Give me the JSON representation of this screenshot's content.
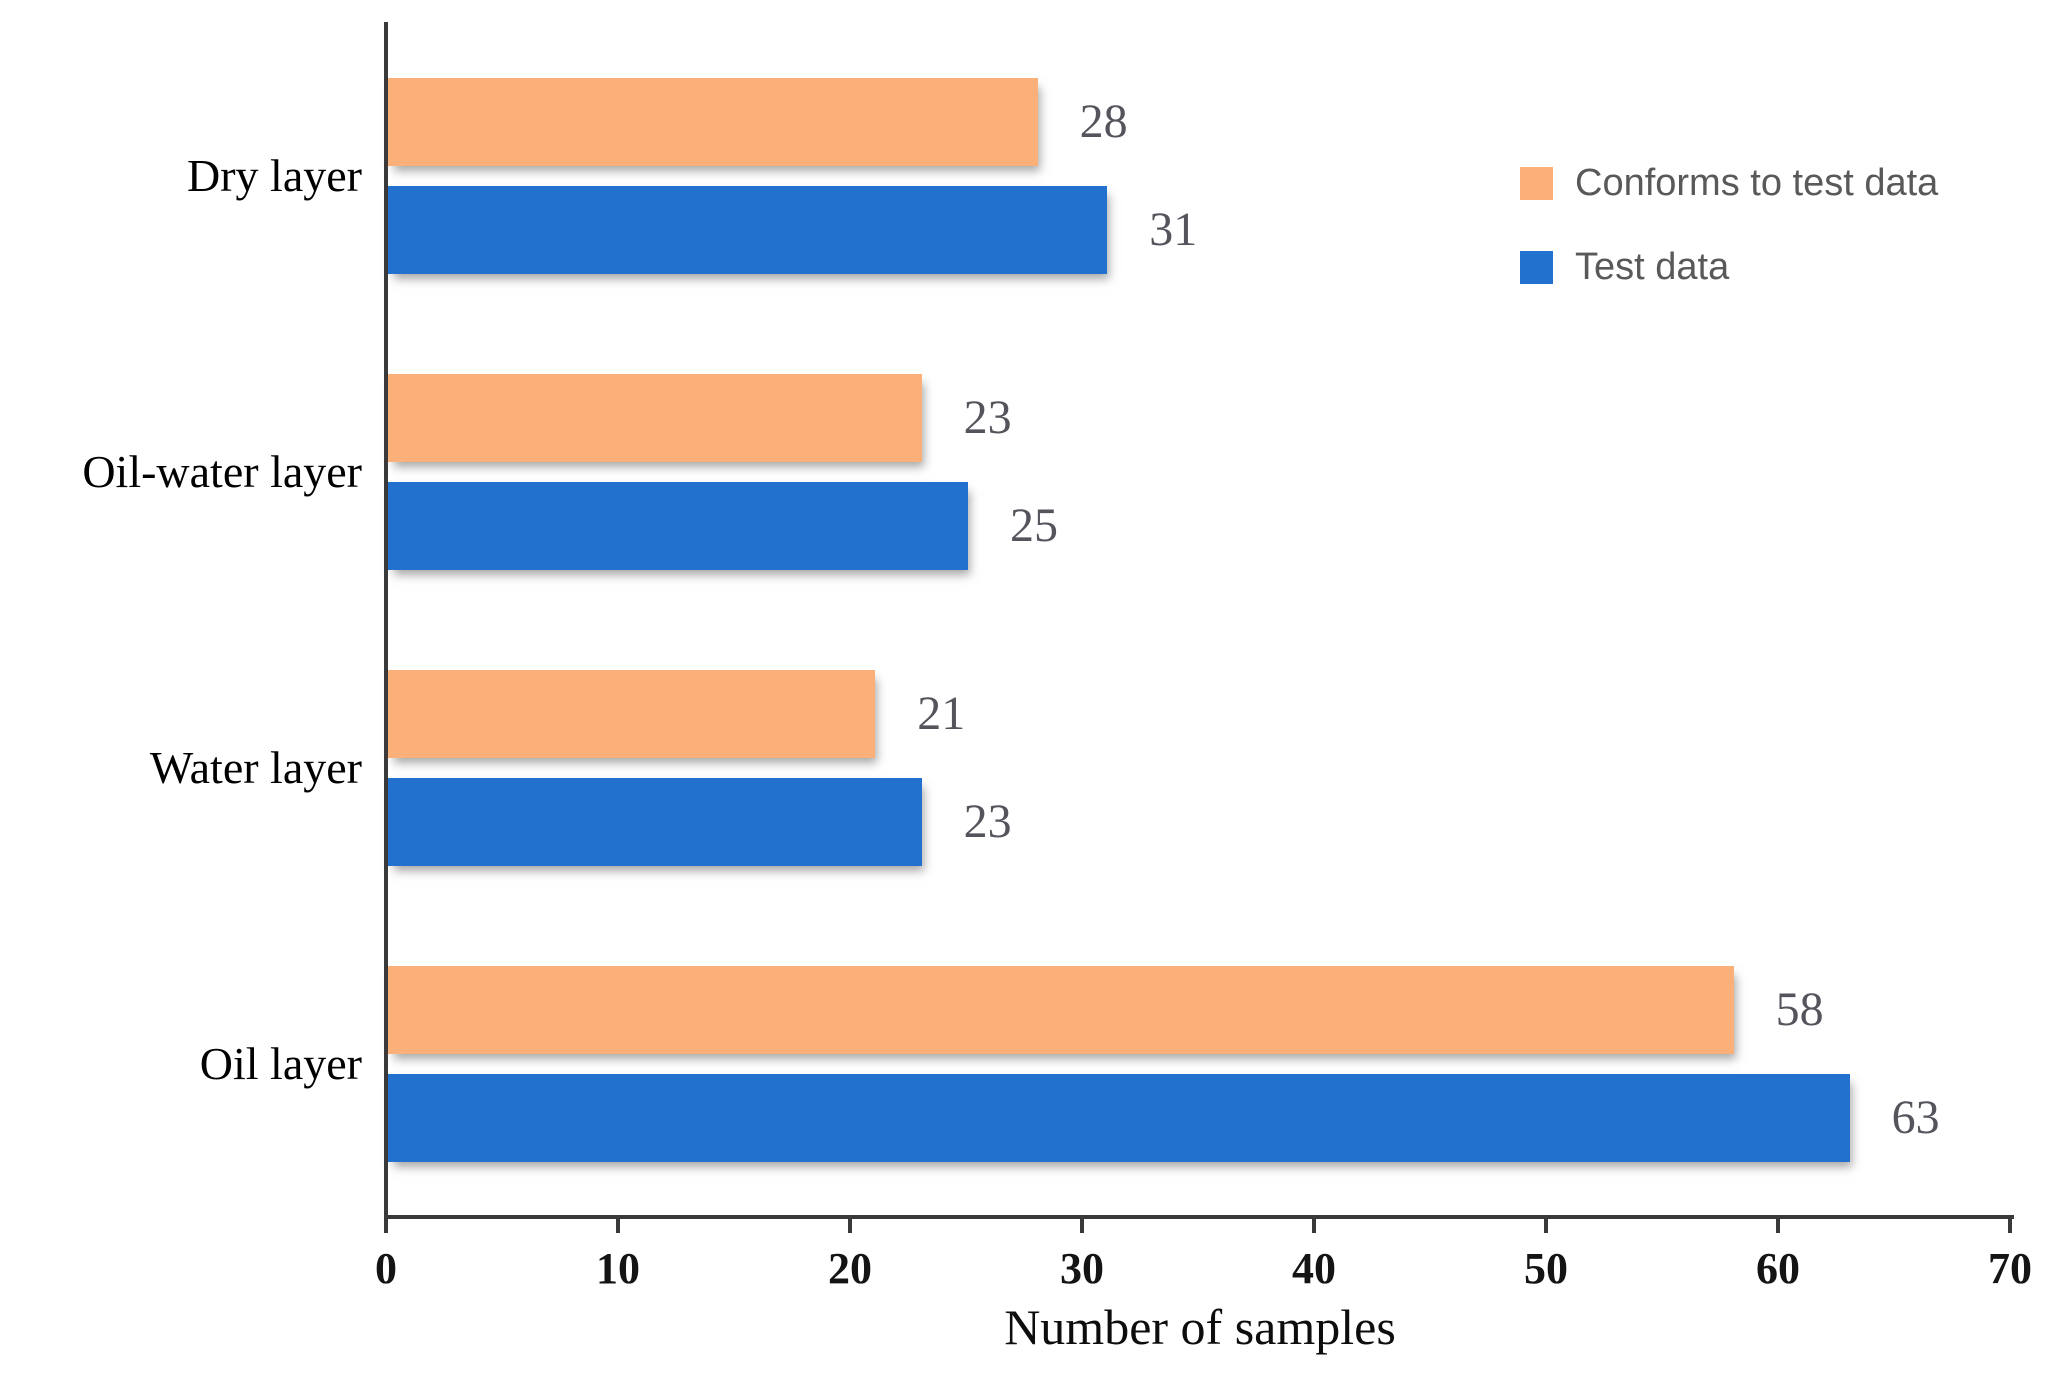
{
  "chart_data": {
    "type": "bar",
    "orientation": "horizontal",
    "title": "",
    "xlabel": "Number of samples",
    "ylabel": "",
    "categories": [
      "Dry layer",
      "Oil-water layer",
      "Water layer",
      "Oil layer"
    ],
    "series": [
      {
        "name": "Conforms to test data",
        "color": "#FBB07A",
        "values": [
          28,
          23,
          21,
          58
        ]
      },
      {
        "name": "Test data",
        "color": "#2271CE",
        "values": [
          31,
          25,
          23,
          63
        ]
      }
    ],
    "xlim": [
      0,
      70
    ],
    "xticks": [
      0,
      10,
      20,
      30,
      40,
      50,
      60,
      70
    ],
    "grid": false,
    "data_labels": true,
    "legend_position": "upper right",
    "axis_color": "#3a3a3a",
    "tick_label_color": "#141414",
    "data_label_color": "#54545c",
    "legend_text_color": "#595959"
  }
}
